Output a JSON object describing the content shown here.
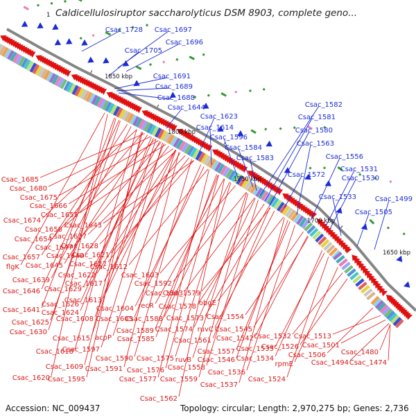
{
  "title": "Caldicellulosiruptor saccharolyticus DSM 8903, complete geno...",
  "title_marker": "1",
  "footer": {
    "accession": "Accession: NC_009437",
    "summary": "Topology: circular; Length: 2,970,275 bp; Genes: 2,736"
  },
  "colors": {
    "forward_strand": "#1a2bd6",
    "reverse_strand": "#e01010",
    "backbone": "#8a8a8a",
    "rna_green": "#2e9a2e"
  },
  "kbp_ticks": [
    "1850 kbp",
    "1800 kbp",
    "1750 kbp",
    "1700 kbp",
    "1650 kbp"
  ],
  "forward_labels": [
    "Csac_1728",
    "Csac_1697",
    "Csac_1696",
    "Csac_1705",
    "Csac_1691",
    "Csac_1689",
    "Csac_1688",
    "Csac_1644",
    "Csac_1623",
    "Csac_1614",
    "Csac_1596",
    "Csac_1584",
    "Csac_1583",
    "Csac_1582",
    "Csac_1581",
    "Csac_1580",
    "Csac_1572",
    "Csac_1563",
    "Csac_1556",
    "Csac_1531",
    "Csac_1530",
    "Csac_1533",
    "Csac_1499",
    "Csac_1505"
  ],
  "reverse_labels": [
    "Csac_1685",
    "Csac_1680",
    "Csac_1675",
    "Csac_1666",
    "Csac_1655",
    "Csac_1674",
    "Csac_1643",
    "Csac_1658",
    "Csac_1637",
    "Csac_1654",
    "Csac_1628",
    "Csac_1647",
    "Csac_1621",
    "Csac_1657",
    "Csac_1640",
    "flgK",
    "Csac_1645",
    "Csac_1627",
    "Csac_1612",
    "Csac_1639",
    "Csac_1622",
    "Csac_1603",
    "Csac_1617",
    "Csac_1592",
    "Csac_1646",
    "Csac_1629",
    "Csac_1593",
    "Csac_1579",
    "Csac_1613",
    "recR",
    "Csac_1578",
    "obgE",
    "Csac_1641",
    "Csac_1626",
    "Csac_1604",
    "Csac_1624",
    "Csac_1608",
    "Csac_1605",
    "Csac_1588",
    "Csac_1573",
    "Csac_1554",
    "Csac_1625",
    "ruvC",
    "Csac_1574",
    "Csac_1545",
    "Csac_1630",
    "Csac_1615",
    "acpP",
    "Csac_1589",
    "Csac_1585",
    "Csac_1561",
    "Csac_1542",
    "Csac_1532",
    "Csac_1526",
    "Csac_1597",
    "Csac_1557",
    "Csac_1535",
    "Csac_1618",
    "Csac_1590",
    "Csac_1575",
    "Csac_1546",
    "Csac_1534",
    "Csac_1513",
    "Csac_1609",
    "ruvB",
    "rpmE",
    "Csac_1501",
    "Csac_1591",
    "Csac_1576",
    "Csac_1558",
    "Csac_1506",
    "Csac_1480",
    "Csac_1620",
    "Csac_1595",
    "Csac_1536",
    "Csac_1494",
    "Csac_1577",
    "Csac_1559",
    "Csac_1524",
    "Csac_1474",
    "Csac_1537",
    "Csac_1562"
  ]
}
